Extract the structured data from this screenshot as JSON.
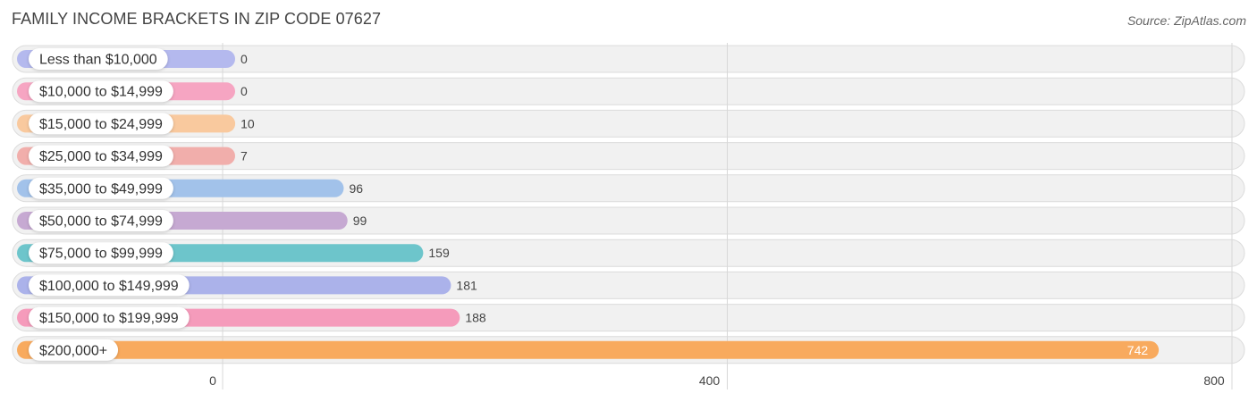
{
  "title": "FAMILY INCOME BRACKETS IN ZIP CODE 07627",
  "source": "Source: ZipAtlas.com",
  "chart_data": {
    "type": "bar",
    "orientation": "horizontal",
    "categories": [
      "Less than $10,000",
      "$10,000 to $14,999",
      "$15,000 to $24,999",
      "$25,000 to $34,999",
      "$35,000 to $49,999",
      "$50,000 to $74,999",
      "$75,000 to $99,999",
      "$100,000 to $149,999",
      "$150,000 to $199,999",
      "$200,000+"
    ],
    "values": [
      0,
      0,
      10,
      7,
      96,
      99,
      159,
      181,
      188,
      742
    ],
    "value_labels": [
      "0",
      "0",
      "10",
      "7",
      "96",
      "99",
      "159",
      "181",
      "188",
      "742"
    ],
    "colors": [
      "#b4b9ee",
      "#f6a5c2",
      "#f9c99e",
      "#f1aeab",
      "#a2c2ea",
      "#c6a9d2",
      "#6dc5cb",
      "#abb2ea",
      "#f59bbb",
      "#f8aa5e"
    ],
    "xlim": [
      0,
      800
    ],
    "xticks": [
      0,
      400,
      800
    ],
    "xtick_labels": [
      "0",
      "400",
      "800"
    ],
    "grid": true,
    "legend": "none"
  }
}
